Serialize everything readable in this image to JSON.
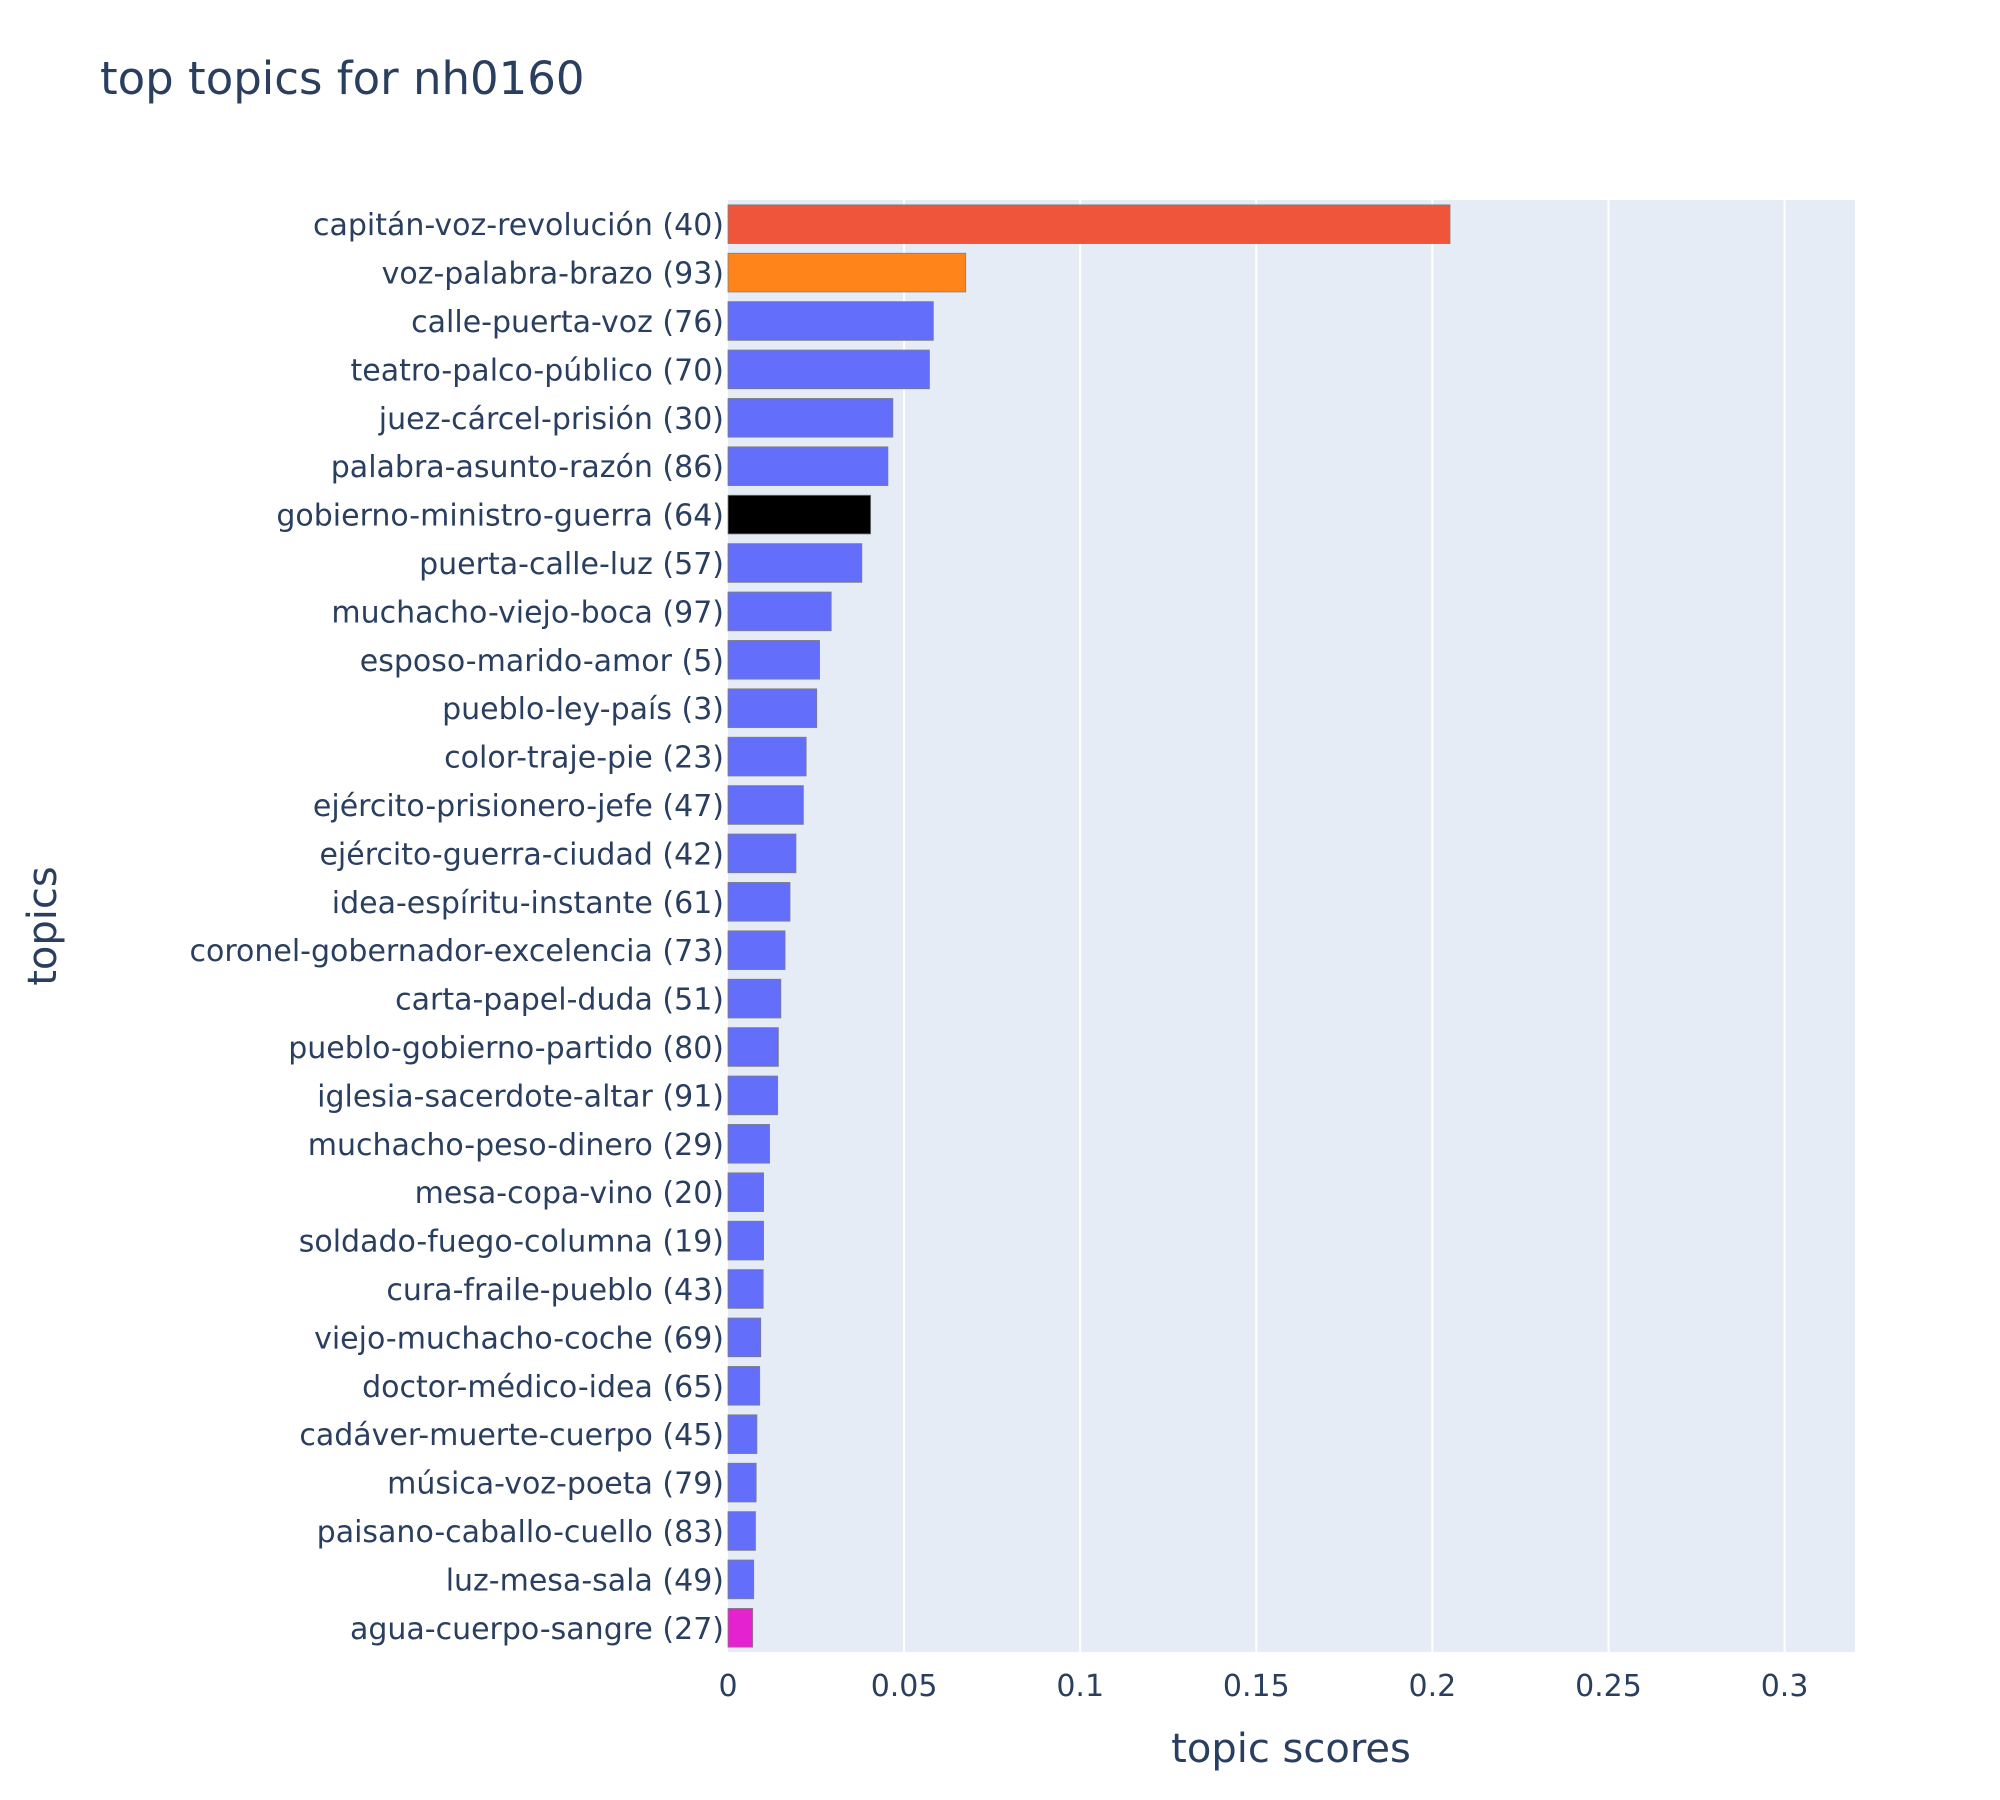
{
  "chart_data": {
    "type": "bar",
    "orientation": "horizontal",
    "title": "top topics for nh0160",
    "xlabel": "topic scores",
    "ylabel": "topics",
    "xlim": [
      0,
      0.32
    ],
    "x_ticks": [
      0,
      0.05,
      0.1,
      0.15,
      0.2,
      0.25,
      0.3
    ],
    "x_tick_labels": [
      "0",
      "0.05",
      "0.1",
      "0.15",
      "0.2",
      "0.25",
      "0.3"
    ],
    "grid": true,
    "plot_background": "#e5ecf6",
    "default_bar_color": "#636efa",
    "categories": [
      "capitán-voz-revolución (40)",
      "voz-palabra-brazo (93)",
      "calle-puerta-voz (76)",
      "teatro-palco-público (70)",
      "juez-cárcel-prisión (30)",
      "palabra-asunto-razón (86)",
      "gobierno-ministro-guerra (64)",
      "puerta-calle-luz (57)",
      "muchacho-viejo-boca (97)",
      "esposo-marido-amor (5)",
      "pueblo-ley-país (3)",
      "color-traje-pie (23)",
      "ejército-prisionero-jefe (47)",
      "ejército-guerra-ciudad (42)",
      "idea-espíritu-instante (61)",
      "coronel-gobernador-excelencia (73)",
      "carta-papel-duda (51)",
      "pueblo-gobierno-partido (80)",
      "iglesia-sacerdote-altar (91)",
      "muchacho-peso-dinero (29)",
      "mesa-copa-vino (20)",
      "soldado-fuego-columna (19)",
      "cura-fraile-pueblo (43)",
      "viejo-muchacho-coche (69)",
      "doctor-médico-idea (65)",
      "cadáver-muerte-cuerpo (45)",
      "música-voz-poeta (79)",
      "paisano-caballo-cuello (83)",
      "luz-mesa-sala (49)",
      "agua-cuerpo-sangre (27)"
    ],
    "values": [
      0.205,
      0.0675,
      0.0583,
      0.0572,
      0.0468,
      0.0454,
      0.0405,
      0.038,
      0.0293,
      0.026,
      0.0252,
      0.0222,
      0.0214,
      0.0193,
      0.0176,
      0.0162,
      0.015,
      0.0143,
      0.0141,
      0.0118,
      0.0101,
      0.0101,
      0.01,
      0.0093,
      0.009,
      0.0082,
      0.008,
      0.0078,
      0.0073,
      0.007
    ],
    "colors": [
      "#ef553b",
      "#ff851b",
      "#636efa",
      "#636efa",
      "#636efa",
      "#636efa",
      "#000000",
      "#636efa",
      "#636efa",
      "#636efa",
      "#636efa",
      "#636efa",
      "#636efa",
      "#636efa",
      "#636efa",
      "#636efa",
      "#636efa",
      "#636efa",
      "#636efa",
      "#636efa",
      "#636efa",
      "#636efa",
      "#636efa",
      "#636efa",
      "#636efa",
      "#636efa",
      "#636efa",
      "#636efa",
      "#636efa",
      "#e522d0"
    ]
  }
}
